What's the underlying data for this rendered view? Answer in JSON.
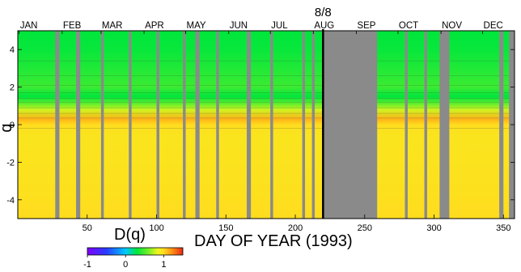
{
  "chart_data": {
    "type": "heatmap",
    "title": "",
    "xlabel": "DAY OF YEAR (1993)",
    "ylabel": "q",
    "xlim": [
      0,
      358
    ],
    "ylim": [
      -5,
      5
    ],
    "x_ticks": [
      50,
      100,
      150,
      200,
      250,
      300,
      350
    ],
    "y_ticks": [
      4,
      2,
      0,
      -2,
      -4
    ],
    "months": [
      {
        "label": "JAN",
        "day": 1
      },
      {
        "label": "FEB",
        "day": 32
      },
      {
        "label": "MAR",
        "day": 60
      },
      {
        "label": "APR",
        "day": 91
      },
      {
        "label": "MAY",
        "day": 121
      },
      {
        "label": "JUN",
        "day": 152
      },
      {
        "label": "JUL",
        "day": 182
      },
      {
        "label": "AUG",
        "day": 213
      },
      {
        "label": "SEP",
        "day": 244
      },
      {
        "label": "OCT",
        "day": 274
      },
      {
        "label": "NOV",
        "day": 305
      },
      {
        "label": "DEC",
        "day": 335
      }
    ],
    "marker": {
      "label": "8/8",
      "day": 220
    },
    "missing_data_days": [
      [
        27,
        30
      ],
      [
        42,
        45
      ],
      [
        60,
        62
      ],
      [
        80,
        82
      ],
      [
        100,
        102
      ],
      [
        119,
        121
      ],
      [
        128,
        131
      ],
      [
        143,
        145
      ],
      [
        165,
        168
      ],
      [
        182,
        184
      ],
      [
        205,
        207
      ],
      [
        212,
        214
      ],
      [
        220,
        259
      ],
      [
        279,
        281
      ],
      [
        293,
        295
      ],
      [
        304,
        311
      ],
      [
        347,
        350
      ],
      [
        354,
        358
      ]
    ],
    "value_profile_by_q": [
      {
        "q": 5,
        "value": 0.3
      },
      {
        "q": 4,
        "value": 0.32
      },
      {
        "q": 3,
        "value": 0.38
      },
      {
        "q": 2,
        "value": 0.45
      },
      {
        "q": 1.5,
        "value": 0.3
      },
      {
        "q": 1.1,
        "value": 0.55
      },
      {
        "q": 0.8,
        "value": 0.78
      },
      {
        "q": 0.3,
        "value": 1.12
      },
      {
        "q": 0,
        "value": 1.0
      },
      {
        "q": -0.5,
        "value": 0.95
      },
      {
        "q": -2,
        "value": 0.96
      },
      {
        "q": -4,
        "value": 0.98
      },
      {
        "q": -5,
        "value": 1.0
      }
    ],
    "colorbar": {
      "label": "D(q)",
      "min": -1,
      "max": 1.5,
      "ticks": [
        -1,
        0,
        1
      ]
    },
    "colors": {
      "missing": "#8a8a8a",
      "marker_line": "#000000"
    }
  }
}
